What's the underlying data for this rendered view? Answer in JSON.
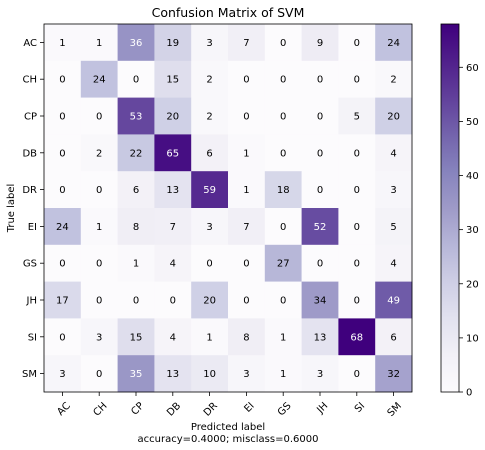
{
  "chart_data": {
    "type": "heatmap",
    "title": "Confusion Matrix of SVM",
    "xlabel": "Predicted label",
    "ylabel": "True label",
    "footer": "accuracy=0.4000; misclass=0.6000",
    "x_categories": [
      "AC",
      "CH",
      "CP",
      "DB",
      "DR",
      "EI",
      "GS",
      "JH",
      "SI",
      "SM"
    ],
    "y_categories": [
      "AC",
      "CH",
      "CP",
      "DB",
      "DR",
      "EI",
      "GS",
      "JH",
      "SI",
      "SM"
    ],
    "values": [
      [
        1,
        1,
        36,
        19,
        3,
        7,
        0,
        9,
        0,
        24
      ],
      [
        0,
        24,
        0,
        15,
        2,
        0,
        0,
        0,
        0,
        2
      ],
      [
        0,
        0,
        53,
        20,
        2,
        0,
        0,
        0,
        5,
        20
      ],
      [
        0,
        2,
        22,
        65,
        6,
        1,
        0,
        0,
        0,
        4
      ],
      [
        0,
        0,
        6,
        13,
        59,
        1,
        18,
        0,
        0,
        3
      ],
      [
        24,
        1,
        8,
        7,
        3,
        7,
        0,
        52,
        0,
        5
      ],
      [
        0,
        0,
        1,
        4,
        0,
        0,
        27,
        0,
        0,
        4
      ],
      [
        17,
        0,
        0,
        0,
        20,
        0,
        0,
        34,
        0,
        49
      ],
      [
        0,
        3,
        15,
        4,
        1,
        8,
        1,
        13,
        68,
        6
      ],
      [
        3,
        0,
        35,
        13,
        10,
        3,
        1,
        3,
        0,
        32
      ]
    ],
    "colorbar": {
      "min": 0,
      "max": 68,
      "ticks": [
        "0",
        "10",
        "20",
        "30",
        "40",
        "50",
        "60"
      ],
      "colormap": "Purples",
      "color_low": "#fcfbfd",
      "color_high": "#3f007d"
    }
  }
}
